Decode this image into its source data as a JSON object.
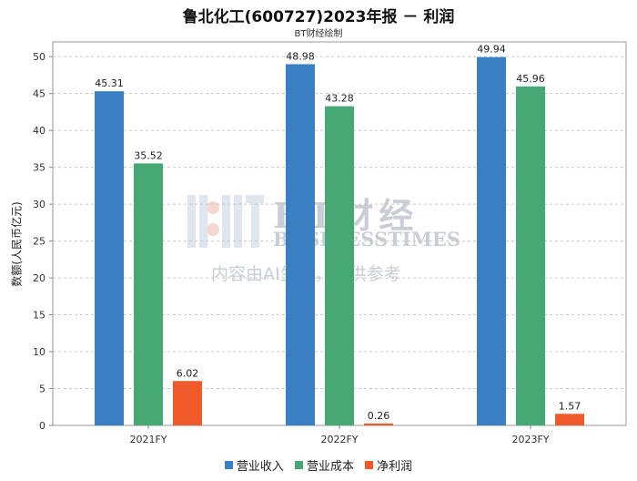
{
  "title": "鲁北化工(600727)2023年报 － 利润",
  "subtitle": "BT财经绘制",
  "watermark": {
    "line1": "BT财经",
    "line2": "BUSINESSTIMES",
    "line3": "内容由AI生成，仅供参考"
  },
  "chart_data": {
    "type": "bar",
    "categories": [
      "2021FY",
      "2022FY",
      "2023FY"
    ],
    "series": [
      {
        "name": "营业收入",
        "color": "#3a7fc1",
        "values": [
          45.31,
          48.98,
          49.94
        ]
      },
      {
        "name": "营业成本",
        "color": "#46a874",
        "values": [
          35.52,
          43.28,
          45.96
        ]
      },
      {
        "name": "净利润",
        "color": "#f0592a",
        "values": [
          6.02,
          0.26,
          1.57
        ]
      }
    ],
    "ylabel": "数额(人民币亿元)",
    "ylim": [
      0,
      52
    ],
    "yticks": [
      0,
      5,
      10,
      15,
      20,
      25,
      30,
      35,
      40,
      45,
      50
    ],
    "grid": true,
    "legend": "bottom"
  }
}
